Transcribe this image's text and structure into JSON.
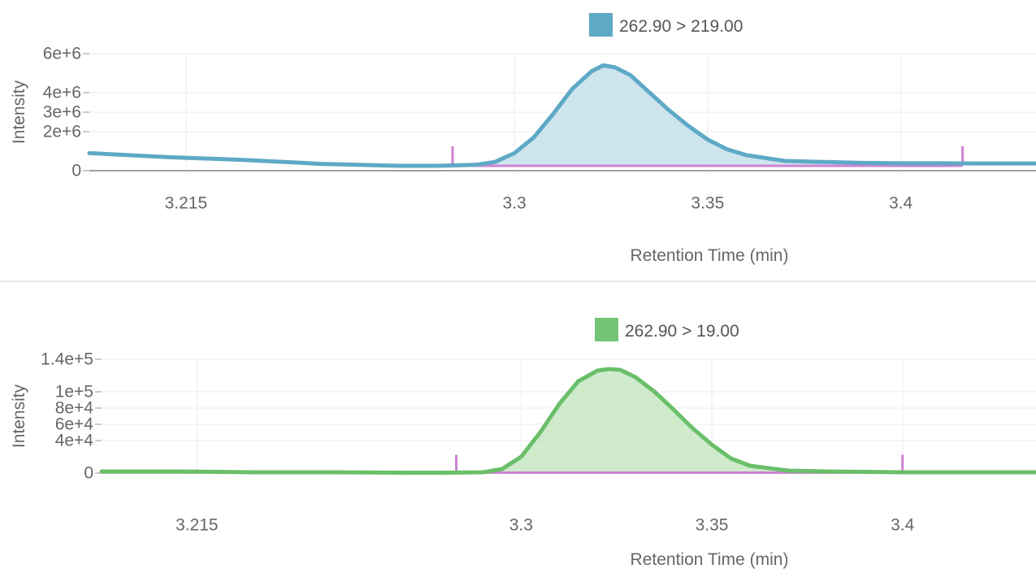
{
  "chart_data": [
    {
      "type": "area",
      "legend": {
        "label": "262.90 > 219.00",
        "color": "#5ea9c6",
        "position": "top-center"
      },
      "xlabel": "Retention Time (min)",
      "ylabel": "Intensity",
      "xlim": [
        3.19,
        3.435
      ],
      "ylim": [
        0,
        6000000
      ],
      "x_ticks": [
        3.215,
        3.3,
        3.35,
        3.4
      ],
      "x_tick_labels": [
        "3.215",
        "3.3",
        "3.35",
        "3.4"
      ],
      "y_ticks": [
        0,
        2000000,
        3000000,
        4000000,
        6000000
      ],
      "y_tick_labels": [
        "0",
        "2e+6",
        "3e+6",
        "4e+6",
        "6e+6"
      ],
      "grid": true,
      "colors": {
        "line": "#5ea9c6",
        "fill": "#c6e1eb",
        "integration": "#cd82d3",
        "baseline": "#808080"
      },
      "series": [
        {
          "x": [
            3.19,
            3.21,
            3.23,
            3.25,
            3.27,
            3.28,
            3.29,
            3.295,
            3.3,
            3.305,
            3.31,
            3.315,
            3.32,
            3.323,
            3.326,
            3.33,
            3.335,
            3.34,
            3.345,
            3.35,
            3.355,
            3.36,
            3.37,
            3.38,
            3.39,
            3.4,
            3.41,
            3.42,
            3.435
          ],
          "y": [
            900000,
            700000,
            550000,
            350000,
            250000,
            250000,
            300000,
            450000,
            900000,
            1700000,
            2900000,
            4200000,
            5100000,
            5400000,
            5300000,
            4900000,
            4000000,
            3100000,
            2300000,
            1600000,
            1100000,
            800000,
            500000,
            450000,
            400000,
            380000,
            380000,
            370000,
            370000
          ]
        }
      ],
      "integration": {
        "start": 3.284,
        "end": 3.416,
        "baseline": 250000
      }
    },
    {
      "type": "area",
      "legend": {
        "label": "262.90 > 19.00",
        "color": "#74c476",
        "position": "top-center"
      },
      "xlabel": "Retention Time (min)",
      "ylabel": "Intensity",
      "xlim": [
        3.19,
        3.435
      ],
      "ylim": [
        0,
        140000
      ],
      "x_ticks": [
        3.215,
        3.3,
        3.35,
        3.4
      ],
      "x_tick_labels": [
        "3.215",
        "3.3",
        "3.35",
        "3.4"
      ],
      "y_ticks": [
        0,
        40000,
        60000,
        80000,
        100000,
        140000
      ],
      "y_tick_labels": [
        "0",
        "4e+4",
        "6e+4",
        "8e+4",
        "1e+5",
        "1.4e+5"
      ],
      "grid": true,
      "colors": {
        "line": "#6abf69",
        "fill": "#c8e6c3",
        "integration": "#cd82d3",
        "baseline": "#808080"
      },
      "series": [
        {
          "x": [
            3.19,
            3.21,
            3.23,
            3.25,
            3.27,
            3.28,
            3.29,
            3.295,
            3.3,
            3.305,
            3.31,
            3.315,
            3.32,
            3.323,
            3.326,
            3.33,
            3.335,
            3.34,
            3.345,
            3.35,
            3.355,
            3.36,
            3.37,
            3.38,
            3.39,
            3.4,
            3.41,
            3.42,
            3.435
          ],
          "y": [
            2000,
            2000,
            1000,
            1000,
            500,
            500,
            1000,
            5000,
            20000,
            50000,
            85000,
            113000,
            126000,
            128000,
            127000,
            118000,
            100000,
            78000,
            55000,
            35000,
            18000,
            9000,
            3000,
            2000,
            1500,
            1000,
            1000,
            1000,
            1000
          ]
        }
      ],
      "integration": {
        "start": 3.283,
        "end": 3.4,
        "baseline": 500
      }
    }
  ]
}
